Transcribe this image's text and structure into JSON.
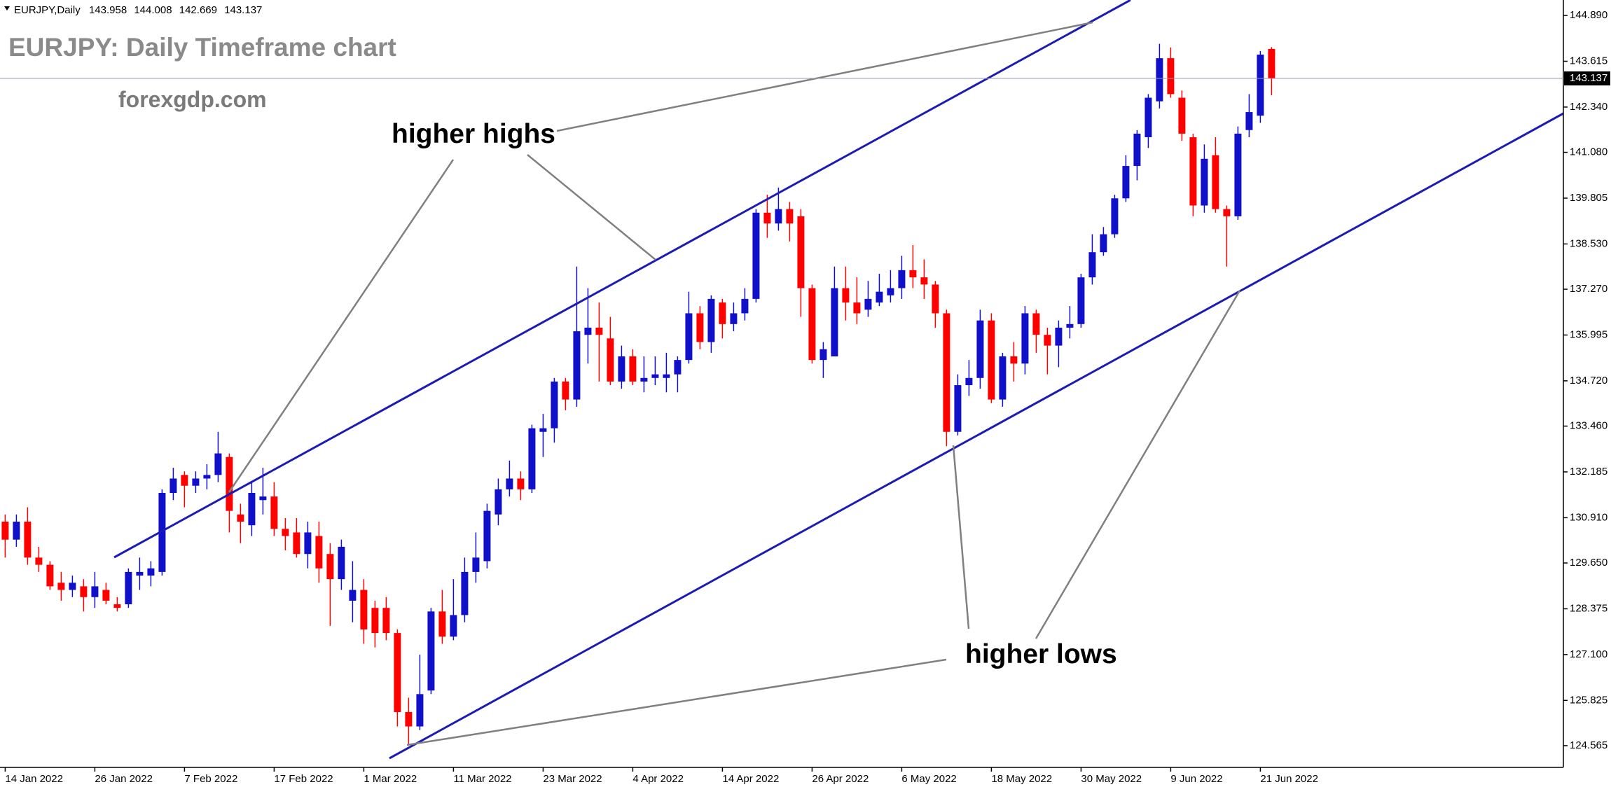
{
  "chart_data": {
    "type": "candlestick",
    "symbol": "EURJPY,Daily",
    "title": "EURJPY: Daily Timeframe chart",
    "watermark": "forexgdp.com",
    "annotations": [
      "higher highs",
      "higher lows"
    ],
    "up_color": "#1010c8",
    "down_color": "#ff0000",
    "categories": [
      "14 Jan 2022",
      null,
      null,
      null,
      null,
      null,
      null,
      null,
      "26 Jan 2022",
      null,
      null,
      null,
      null,
      null,
      null,
      null,
      "7 Feb 2022",
      null,
      null,
      null,
      null,
      null,
      null,
      null,
      "17 Feb 2022",
      null,
      null,
      null,
      null,
      null,
      null,
      null,
      "1 Mar 2022",
      null,
      null,
      null,
      null,
      null,
      null,
      null,
      "11 Mar 2022",
      null,
      null,
      null,
      null,
      null,
      null,
      null,
      "23 Mar 2022",
      null,
      null,
      null,
      null,
      null,
      null,
      null,
      "4 Apr 2022",
      null,
      null,
      null,
      null,
      null,
      null,
      null,
      "14 Apr 2022",
      null,
      null,
      null,
      null,
      null,
      null,
      null,
      "26 Apr 2022",
      null,
      null,
      null,
      null,
      null,
      null,
      null,
      "6 May 2022",
      null,
      null,
      null,
      null,
      null,
      null,
      null,
      "18 May 2022",
      null,
      null,
      null,
      null,
      null,
      null,
      null,
      "30 May 2022",
      null,
      null,
      null,
      null,
      null,
      null,
      null,
      "9 Jun 2022",
      null,
      null,
      null,
      null,
      null,
      null,
      null,
      "21 Jun 2022",
      null
    ],
    "open": [
      130.8,
      130.3,
      130.8,
      129.8,
      129.6,
      129.1,
      128.9,
      129.0,
      128.7,
      128.9,
      128.5,
      128.5,
      129.3,
      129.3,
      129.4,
      131.6,
      132.1,
      131.8,
      132.0,
      132.1,
      132.6,
      131.0,
      130.7,
      131.4,
      131.5,
      130.6,
      130.5,
      129.9,
      130.4,
      129.9,
      129.2,
      128.6,
      128.9,
      128.4,
      128.4,
      127.7,
      125.5,
      125.1,
      126.1,
      128.3,
      127.6,
      128.2,
      129.4,
      129.7,
      131.0,
      131.7,
      132.0,
      131.7,
      133.3,
      133.4,
      134.7,
      134.2,
      136.0,
      136.2,
      135.9,
      134.7,
      135.4,
      134.7,
      134.8,
      134.8,
      134.9,
      135.3,
      136.6,
      135.8,
      136.9,
      136.3,
      136.6,
      137.0,
      139.4,
      139.1,
      139.5,
      139.3,
      137.3,
      135.3,
      135.4,
      137.3,
      136.9,
      136.7,
      136.9,
      137.1,
      137.3,
      137.8,
      137.6,
      137.4,
      136.6,
      133.3,
      134.6,
      134.8,
      136.4,
      134.2,
      135.4,
      135.2,
      136.6,
      136.0,
      135.7,
      136.2,
      136.3,
      137.6,
      138.3,
      138.8,
      139.8,
      140.7,
      141.5,
      142.5,
      143.7,
      142.6,
      141.5,
      139.6,
      141.0,
      139.5,
      139.3,
      141.7,
      142.1,
      143.958
    ],
    "high": [
      131.0,
      131.0,
      131.2,
      130.1,
      129.7,
      129.4,
      129.3,
      129.2,
      129.4,
      129.1,
      128.7,
      129.5,
      129.8,
      129.7,
      131.7,
      132.3,
      132.2,
      132.2,
      132.4,
      133.3,
      132.7,
      131.3,
      131.9,
      132.3,
      131.9,
      130.9,
      130.9,
      130.8,
      130.8,
      130.2,
      130.3,
      129.7,
      129.2,
      128.6,
      128.7,
      127.8,
      125.9,
      127.1,
      128.4,
      128.9,
      129.2,
      129.8,
      130.5,
      131.3,
      132.0,
      132.5,
      132.2,
      133.5,
      133.8,
      134.8,
      134.8,
      137.9,
      137.3,
      136.9,
      136.5,
      135.7,
      135.6,
      135.4,
      135.4,
      135.5,
      135.4,
      137.2,
      136.8,
      137.1,
      137.0,
      136.9,
      137.3,
      139.5,
      139.9,
      140.1,
      139.7,
      139.5,
      137.4,
      135.8,
      137.9,
      137.9,
      137.6,
      137.5,
      137.7,
      137.8,
      138.2,
      138.5,
      138.1,
      137.5,
      136.7,
      134.9,
      135.3,
      136.7,
      136.6,
      135.5,
      135.8,
      136.8,
      136.7,
      136.2,
      136.4,
      136.8,
      137.7,
      138.8,
      139.0,
      139.9,
      141.0,
      141.7,
      142.7,
      144.1,
      144.0,
      142.8,
      141.6,
      141.3,
      141.5,
      139.6,
      141.8,
      142.7,
      143.9,
      144.008
    ],
    "low": [
      129.8,
      130.1,
      129.6,
      129.4,
      128.9,
      128.6,
      128.7,
      128.3,
      128.4,
      128.5,
      128.3,
      128.4,
      128.9,
      129.0,
      129.3,
      131.4,
      131.2,
      131.6,
      131.7,
      131.9,
      130.5,
      130.2,
      130.4,
      131.0,
      130.4,
      130.0,
      129.8,
      129.5,
      129.1,
      127.9,
      128.9,
      128.0,
      127.4,
      127.3,
      127.5,
      125.1,
      124.6,
      125.0,
      126.0,
      127.4,
      127.5,
      128.0,
      129.1,
      129.5,
      130.7,
      131.5,
      131.4,
      131.6,
      132.6,
      133.0,
      133.9,
      134.0,
      135.2,
      134.7,
      134.6,
      134.5,
      134.6,
      134.4,
      134.6,
      134.4,
      134.4,
      135.2,
      135.6,
      135.5,
      135.9,
      136.1,
      136.4,
      136.9,
      138.7,
      138.9,
      138.6,
      136.5,
      135.2,
      134.8,
      135.4,
      136.4,
      136.3,
      136.5,
      136.8,
      136.9,
      137.0,
      137.3,
      137.0,
      136.2,
      132.9,
      133.2,
      134.3,
      134.5,
      134.1,
      134.0,
      134.7,
      134.9,
      135.5,
      134.9,
      135.1,
      135.9,
      136.2,
      137.4,
      138.2,
      138.7,
      139.7,
      140.3,
      141.2,
      142.3,
      142.6,
      141.4,
      139.3,
      139.4,
      139.4,
      137.9,
      139.2,
      141.5,
      141.9,
      142.669
    ],
    "close": [
      130.3,
      130.8,
      129.8,
      129.6,
      129.0,
      128.9,
      129.1,
      128.7,
      129.0,
      128.6,
      128.4,
      129.4,
      129.4,
      129.5,
      131.6,
      132.0,
      131.8,
      132.0,
      132.1,
      132.7,
      131.1,
      130.8,
      131.6,
      131.5,
      130.6,
      130.4,
      129.9,
      130.5,
      129.5,
      129.2,
      130.1,
      128.9,
      127.8,
      127.7,
      127.7,
      125.5,
      125.1,
      126.0,
      128.3,
      127.6,
      128.2,
      129.4,
      129.8,
      131.1,
      131.7,
      132.0,
      131.7,
      133.4,
      133.4,
      134.7,
      134.2,
      136.1,
      136.2,
      136.0,
      134.7,
      135.4,
      134.7,
      134.8,
      134.9,
      134.9,
      135.3,
      136.6,
      135.8,
      137.0,
      136.3,
      136.6,
      137.0,
      139.4,
      139.1,
      139.5,
      139.1,
      137.3,
      135.3,
      135.6,
      137.3,
      136.9,
      136.6,
      137.0,
      137.2,
      137.3,
      137.8,
      137.6,
      137.4,
      136.6,
      133.3,
      134.6,
      134.8,
      136.4,
      134.2,
      135.4,
      135.2,
      136.6,
      136.0,
      135.7,
      136.2,
      136.3,
      137.6,
      138.3,
      138.8,
      139.8,
      140.7,
      141.6,
      142.6,
      143.7,
      142.7,
      141.6,
      139.6,
      140.9,
      139.5,
      139.3,
      141.6,
      142.2,
      143.8,
      143.137
    ],
    "ylim": [
      123.96,
      145.32
    ],
    "yticks": [
      {
        "value": 144.89,
        "label": "144.890"
      },
      143.615,
      {
        "value": 142.34,
        "label": "142.340"
      },
      {
        "value": 141.08,
        "label": "141.080"
      },
      139.805,
      {
        "value": 138.53,
        "label": "138.530"
      },
      {
        "value": 137.27,
        "label": "137.270"
      },
      135.995,
      {
        "value": 134.72,
        "label": "134.720"
      },
      {
        "value": 133.46,
        "label": "133.460"
      },
      132.185,
      {
        "value": 130.91,
        "label": "130.910"
      },
      {
        "value": 129.65,
        "label": "129.650"
      },
      128.375,
      {
        "value": 127.1,
        "label": "127.100"
      },
      125.825,
      124.565
    ]
  }
}
